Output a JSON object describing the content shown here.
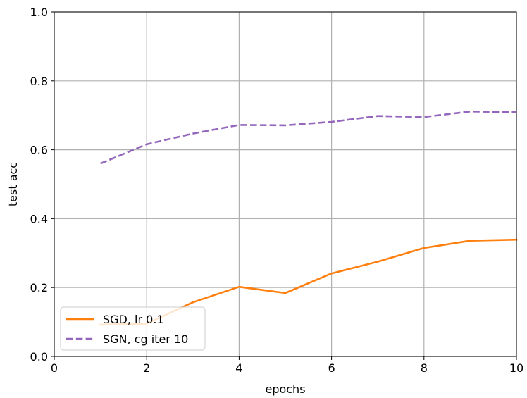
{
  "chart_data": {
    "type": "line",
    "xlabel": "epochs",
    "ylabel": "test acc",
    "xlim": [
      0,
      10
    ],
    "ylim": [
      0.0,
      1.0
    ],
    "xticks": [
      "0",
      "2",
      "4",
      "6",
      "8",
      "10"
    ],
    "yticks": [
      "0.0",
      "0.2",
      "0.4",
      "0.6",
      "0.8",
      "1.0"
    ],
    "grid": true,
    "legend_position": "lower-left",
    "series": [
      {
        "name": "SGD, lr 0.1",
        "color": "#ff7f0e",
        "style": "solid",
        "x": [
          1,
          2,
          3,
          4,
          5,
          6,
          7,
          8,
          9,
          10
        ],
        "y": [
          0.092,
          0.095,
          0.157,
          0.202,
          0.184,
          0.241,
          0.275,
          0.315,
          0.336,
          0.339
        ]
      },
      {
        "name": "SGN, cg iter 10",
        "color": "#9467bd",
        "style": "dashed",
        "x": [
          1,
          2,
          3,
          4,
          5,
          6,
          7,
          8,
          9,
          10
        ],
        "y": [
          0.56,
          0.616,
          0.647,
          0.672,
          0.671,
          0.681,
          0.698,
          0.695,
          0.711,
          0.709
        ]
      }
    ]
  }
}
